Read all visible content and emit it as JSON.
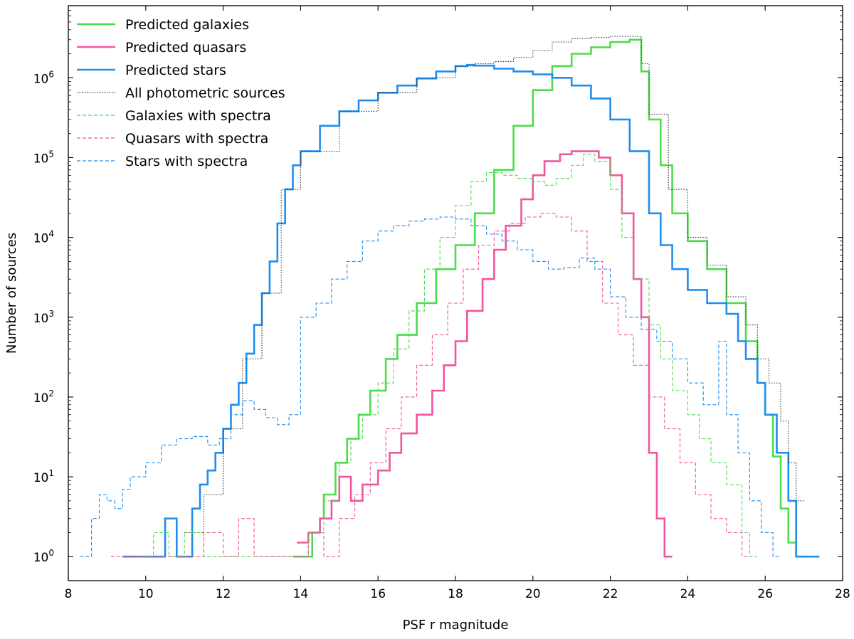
{
  "chart_data": {
    "type": "histogram-step",
    "title": "",
    "xlabel": "PSF r magnitude",
    "ylabel": "Number of sources",
    "x_scale": "linear",
    "y_scale": "log",
    "xlim": [
      8,
      28
    ],
    "ylim": [
      0.5,
      8000000
    ],
    "x_ticks": [
      8,
      10,
      12,
      14,
      16,
      18,
      20,
      22,
      24,
      26,
      28
    ],
    "x_tick_labels": [
      "8",
      "10",
      "12",
      "14",
      "16",
      "18",
      "20",
      "22",
      "24",
      "26",
      "28"
    ],
    "y_ticks": [
      1,
      10,
      100,
      1000,
      10000,
      100000,
      1000000
    ],
    "y_tick_labels": [
      {
        "base": "10",
        "exp": "0"
      },
      {
        "base": "10",
        "exp": "1"
      },
      {
        "base": "10",
        "exp": "2"
      },
      {
        "base": "10",
        "exp": "3"
      },
      {
        "base": "10",
        "exp": "4"
      },
      {
        "base": "10",
        "exp": "5"
      },
      {
        "base": "10",
        "exp": "6"
      }
    ],
    "legend_position": "top-left",
    "series": [
      {
        "name": "Predicted galaxies",
        "color": "#4ddc4d",
        "style": "solid",
        "points": [
          [
            13.8,
            1
          ],
          [
            14.3,
            2
          ],
          [
            14.5,
            3
          ],
          [
            14.6,
            6
          ],
          [
            14.9,
            15
          ],
          [
            15.2,
            30
          ],
          [
            15.5,
            60
          ],
          [
            15.8,
            120
          ],
          [
            16.2,
            300
          ],
          [
            16.5,
            600
          ],
          [
            17,
            1500
          ],
          [
            17.5,
            4000
          ],
          [
            18,
            8000
          ],
          [
            18.5,
            20000
          ],
          [
            19,
            70000
          ],
          [
            19.5,
            250000
          ],
          [
            20,
            700000
          ],
          [
            20.5,
            1400000
          ],
          [
            21,
            2000000
          ],
          [
            21.5,
            2400000
          ],
          [
            22,
            2800000
          ],
          [
            22.5,
            3000000
          ],
          [
            22.8,
            1200000
          ],
          [
            23,
            300000
          ],
          [
            23.3,
            80000
          ],
          [
            23.6,
            20000
          ],
          [
            24,
            9000
          ],
          [
            24.5,
            4000
          ],
          [
            25,
            1500
          ],
          [
            25.5,
            500
          ],
          [
            25.8,
            150
          ],
          [
            26,
            60
          ],
          [
            26.2,
            18
          ],
          [
            26.4,
            4
          ],
          [
            26.6,
            1.5
          ],
          [
            26.8,
            1
          ]
        ]
      },
      {
        "name": "Predicted quasars",
        "color": "#f0569e",
        "style": "solid",
        "points": [
          [
            13.9,
            1.5
          ],
          [
            14.2,
            2
          ],
          [
            14.5,
            3
          ],
          [
            14.8,
            5
          ],
          [
            15,
            10
          ],
          [
            15.3,
            5
          ],
          [
            15.6,
            8
          ],
          [
            16,
            12
          ],
          [
            16.3,
            20
          ],
          [
            16.6,
            35
          ],
          [
            17,
            60
          ],
          [
            17.4,
            120
          ],
          [
            17.7,
            250
          ],
          [
            18,
            500
          ],
          [
            18.3,
            1200
          ],
          [
            18.7,
            3000
          ],
          [
            19,
            7000
          ],
          [
            19.3,
            14000
          ],
          [
            19.7,
            30000
          ],
          [
            20,
            60000
          ],
          [
            20.3,
            90000
          ],
          [
            20.7,
            110000
          ],
          [
            21,
            120000
          ],
          [
            21.3,
            120000
          ],
          [
            21.7,
            100000
          ],
          [
            22,
            60000
          ],
          [
            22.3,
            20000
          ],
          [
            22.6,
            3000
          ],
          [
            22.8,
            1000
          ],
          [
            23,
            20
          ],
          [
            23.2,
            3
          ],
          [
            23.4,
            1
          ]
        ]
      },
      {
        "name": "Predicted stars",
        "color": "#1f8ef0",
        "style": "solid",
        "points": [
          [
            9.4,
            1
          ],
          [
            10.5,
            3
          ],
          [
            10.8,
            1
          ],
          [
            11.2,
            4
          ],
          [
            11.4,
            8
          ],
          [
            11.6,
            12
          ],
          [
            11.8,
            20
          ],
          [
            12,
            40
          ],
          [
            12.2,
            80
          ],
          [
            12.4,
            150
          ],
          [
            12.6,
            350
          ],
          [
            12.8,
            800
          ],
          [
            13,
            2000
          ],
          [
            13.2,
            5000
          ],
          [
            13.4,
            15000
          ],
          [
            13.6,
            40000
          ],
          [
            13.8,
            80000
          ],
          [
            14,
            120000
          ],
          [
            14.5,
            250000
          ],
          [
            15,
            380000
          ],
          [
            15.5,
            520000
          ],
          [
            16,
            650000
          ],
          [
            16.5,
            800000
          ],
          [
            17,
            980000
          ],
          [
            17.5,
            1200000
          ],
          [
            18,
            1400000
          ],
          [
            18.3,
            1450000
          ],
          [
            18.5,
            1420000
          ],
          [
            19,
            1300000
          ],
          [
            19.5,
            1200000
          ],
          [
            20,
            1100000
          ],
          [
            20.5,
            1000000
          ],
          [
            21,
            800000
          ],
          [
            21.5,
            550000
          ],
          [
            22,
            300000
          ],
          [
            22.5,
            120000
          ],
          [
            23,
            20000
          ],
          [
            23.3,
            8000
          ],
          [
            23.6,
            4000
          ],
          [
            24,
            2200
          ],
          [
            24.5,
            1500
          ],
          [
            25,
            1100
          ],
          [
            25.3,
            500
          ],
          [
            25.5,
            300
          ],
          [
            25.8,
            150
          ],
          [
            26,
            60
          ],
          [
            26.3,
            20
          ],
          [
            26.6,
            5
          ],
          [
            26.8,
            1
          ],
          [
            27.2,
            1
          ]
        ]
      },
      {
        "name": "All photometric sources",
        "color": "#333333",
        "style": "dotted",
        "points": [
          [
            11,
            2
          ],
          [
            11.5,
            6
          ],
          [
            12,
            40
          ],
          [
            12.5,
            300
          ],
          [
            13,
            2000
          ],
          [
            13.5,
            40000
          ],
          [
            14,
            120000
          ],
          [
            15,
            380000
          ],
          [
            16,
            650000
          ],
          [
            17,
            1000000
          ],
          [
            18,
            1400000
          ],
          [
            18.5,
            1500000
          ],
          [
            19,
            1600000
          ],
          [
            19.5,
            1800000
          ],
          [
            20,
            2200000
          ],
          [
            20.5,
            2800000
          ],
          [
            21,
            3100000
          ],
          [
            21.5,
            3200000
          ],
          [
            22,
            3300000
          ],
          [
            22.5,
            3300000
          ],
          [
            22.8,
            1500000
          ],
          [
            23,
            350000
          ],
          [
            23.5,
            40000
          ],
          [
            24,
            10000
          ],
          [
            24.5,
            4500
          ],
          [
            25,
            1800
          ],
          [
            25.5,
            800
          ],
          [
            25.8,
            300
          ],
          [
            26.1,
            150
          ],
          [
            26.4,
            50
          ],
          [
            26.6,
            15
          ],
          [
            26.8,
            5
          ]
        ]
      },
      {
        "name": "Galaxies with spectra",
        "color": "#4ddc4d",
        "style": "dashed",
        "points": [
          [
            9.8,
            1
          ],
          [
            10.2,
            2
          ],
          [
            10.6,
            1
          ],
          [
            11,
            2
          ],
          [
            11.5,
            1
          ],
          [
            12,
            1
          ],
          [
            13,
            1
          ],
          [
            13.8,
            1
          ],
          [
            14.2,
            2
          ],
          [
            14.6,
            5
          ],
          [
            15,
            15
          ],
          [
            15.3,
            30
          ],
          [
            15.6,
            60
          ],
          [
            16,
            150
          ],
          [
            16.4,
            400
          ],
          [
            16.8,
            1200
          ],
          [
            17.2,
            4000
          ],
          [
            17.6,
            10000
          ],
          [
            18,
            25000
          ],
          [
            18.4,
            50000
          ],
          [
            18.8,
            65000
          ],
          [
            19.2,
            60000
          ],
          [
            19.6,
            55000
          ],
          [
            20,
            50000
          ],
          [
            20.3,
            45000
          ],
          [
            20.6,
            55000
          ],
          [
            21,
            80000
          ],
          [
            21.3,
            110000
          ],
          [
            21.6,
            90000
          ],
          [
            22,
            40000
          ],
          [
            22.3,
            10000
          ],
          [
            22.6,
            3000
          ],
          [
            23,
            800
          ],
          [
            23.3,
            300
          ],
          [
            23.6,
            120
          ],
          [
            24,
            60
          ],
          [
            24.3,
            30
          ],
          [
            24.6,
            15
          ],
          [
            25,
            8
          ],
          [
            25.4,
            2
          ],
          [
            25.6,
            1
          ]
        ]
      },
      {
        "name": "Quasars with spectra",
        "color": "#f0569e",
        "style": "dashed",
        "points": [
          [
            9.1,
            1
          ],
          [
            9.5,
            1
          ],
          [
            10,
            1
          ],
          [
            10.5,
            1
          ],
          [
            11,
            1
          ],
          [
            11.5,
            2
          ],
          [
            12,
            1
          ],
          [
            12.4,
            3
          ],
          [
            12.8,
            1
          ],
          [
            13.3,
            1
          ],
          [
            13.8,
            1
          ],
          [
            14.2,
            2
          ],
          [
            14.6,
            1
          ],
          [
            15,
            3
          ],
          [
            15.4,
            6
          ],
          [
            15.8,
            15
          ],
          [
            16.2,
            40
          ],
          [
            16.6,
            100
          ],
          [
            17,
            250
          ],
          [
            17.4,
            600
          ],
          [
            17.8,
            1500
          ],
          [
            18.2,
            4000
          ],
          [
            18.6,
            8000
          ],
          [
            19,
            12000
          ],
          [
            19.4,
            15000
          ],
          [
            19.8,
            18000
          ],
          [
            20.2,
            20000
          ],
          [
            20.6,
            18000
          ],
          [
            21,
            12000
          ],
          [
            21.4,
            5000
          ],
          [
            21.8,
            1500
          ],
          [
            22.2,
            600
          ],
          [
            22.6,
            250
          ],
          [
            23,
            100
          ],
          [
            23.4,
            40
          ],
          [
            23.8,
            15
          ],
          [
            24.2,
            6
          ],
          [
            24.6,
            3
          ],
          [
            25,
            2
          ],
          [
            25.4,
            1
          ]
        ]
      },
      {
        "name": "Stars with spectra",
        "color": "#1f8ef0",
        "style": "dashed",
        "points": [
          [
            8.3,
            1
          ],
          [
            8.6,
            3
          ],
          [
            8.8,
            6
          ],
          [
            9,
            5
          ],
          [
            9.2,
            4
          ],
          [
            9.4,
            7
          ],
          [
            9.6,
            10
          ],
          [
            10,
            15
          ],
          [
            10.4,
            25
          ],
          [
            10.8,
            30
          ],
          [
            11.2,
            32
          ],
          [
            11.6,
            25
          ],
          [
            11.9,
            30
          ],
          [
            12.2,
            60
          ],
          [
            12.5,
            90
          ],
          [
            12.8,
            70
          ],
          [
            13.1,
            55
          ],
          [
            13.4,
            45
          ],
          [
            13.7,
            60
          ],
          [
            14,
            1000
          ],
          [
            14.4,
            1500
          ],
          [
            14.8,
            3000
          ],
          [
            15.2,
            5000
          ],
          [
            15.6,
            9000
          ],
          [
            16,
            12000
          ],
          [
            16.4,
            14000
          ],
          [
            16.8,
            16000
          ],
          [
            17.2,
            17000
          ],
          [
            17.6,
            18000
          ],
          [
            18,
            17000
          ],
          [
            18.4,
            14000
          ],
          [
            18.8,
            11000
          ],
          [
            19.2,
            9000
          ],
          [
            19.6,
            7000
          ],
          [
            20,
            5000
          ],
          [
            20.4,
            4000
          ],
          [
            20.8,
            4200
          ],
          [
            21.2,
            5500
          ],
          [
            21.6,
            4000
          ],
          [
            22,
            1800
          ],
          [
            22.4,
            1000
          ],
          [
            22.8,
            700
          ],
          [
            23.2,
            500
          ],
          [
            23.6,
            300
          ],
          [
            24,
            150
          ],
          [
            24.4,
            80
          ],
          [
            24.8,
            500
          ],
          [
            25,
            60
          ],
          [
            25.3,
            20
          ],
          [
            25.6,
            5
          ],
          [
            25.9,
            2
          ],
          [
            26.2,
            1
          ]
        ]
      }
    ]
  }
}
